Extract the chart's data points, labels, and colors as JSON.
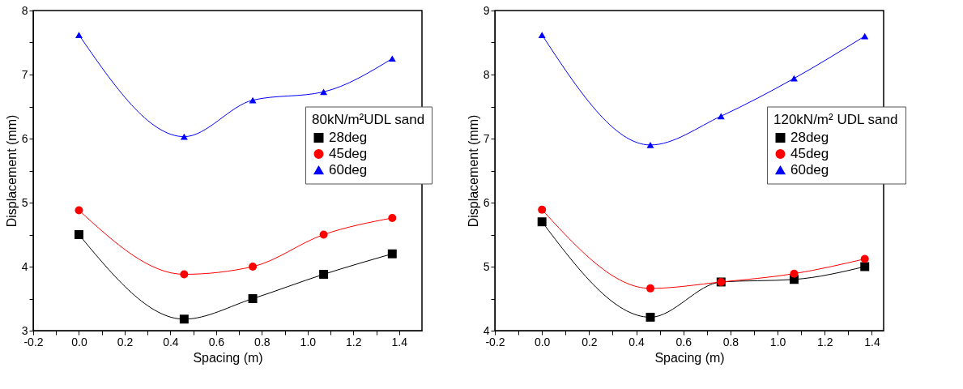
{
  "chart_data": [
    {
      "type": "line",
      "xlabel": "Spacing (m)",
      "ylabel": "Displacement (mm)",
      "legend_title": "80kN/m²UDL sand",
      "legend": "right",
      "line_style": "solid",
      "grid": false,
      "x": [
        0,
        0.46,
        0.76,
        1.07,
        1.37
      ],
      "series": [
        {
          "name": "28deg",
          "color": "#000000",
          "marker": "square",
          "values": [
            4.5,
            3.18,
            3.5,
            3.88,
            4.2
          ]
        },
        {
          "name": "45deg",
          "color": "#ff0000",
          "marker": "circle",
          "values": [
            4.88,
            3.88,
            4.0,
            4.5,
            4.76
          ]
        },
        {
          "name": "60deg",
          "color": "#0000ff",
          "marker": "triangle",
          "values": [
            7.62,
            6.03,
            6.6,
            6.73,
            7.25
          ]
        }
      ],
      "xlim": [
        -0.2,
        1.5
      ],
      "ylim": [
        3,
        8
      ],
      "xticks": [
        {
          "value": -0.2,
          "label": "-0.2"
        },
        {
          "value": -0.1,
          "label": null
        },
        {
          "value": 0,
          "label": "0.0"
        },
        {
          "value": 0.1,
          "label": null
        },
        {
          "value": 0.2,
          "label": "0.2"
        },
        {
          "value": 0.3,
          "label": null
        },
        {
          "value": 0.4,
          "label": "0.4"
        },
        {
          "value": 0.5,
          "label": null
        },
        {
          "value": 0.6,
          "label": "0.6"
        },
        {
          "value": 0.7,
          "label": null
        },
        {
          "value": 0.8,
          "label": "0.8"
        },
        {
          "value": 0.9,
          "label": null
        },
        {
          "value": 1.0,
          "label": "1.0"
        },
        {
          "value": 1.1,
          "label": null
        },
        {
          "value": 1.2,
          "label": "1.2"
        },
        {
          "value": 1.3,
          "label": null
        },
        {
          "value": 1.4,
          "label": "1.4"
        }
      ],
      "yticks": [
        3,
        {
          "value": 3.5,
          "label": null
        },
        4,
        {
          "value": 4.5,
          "label": null
        },
        5,
        {
          "value": 5.5,
          "label": null
        },
        6,
        {
          "value": 6.5,
          "label": null
        },
        7,
        {
          "value": 7.5,
          "label": null
        },
        8
      ]
    },
    {
      "type": "line",
      "xlabel": "Spacing (m)",
      "ylabel": "Displacement (mm)",
      "legend_title": "120kN/m² UDL sand",
      "legend": "right",
      "line_style": "solid",
      "grid": false,
      "x": [
        0,
        0.46,
        0.76,
        1.07,
        1.37
      ],
      "series": [
        {
          "name": "28deg",
          "color": "#000000",
          "marker": "square",
          "values": [
            5.7,
            4.21,
            4.76,
            4.8,
            5.0
          ]
        },
        {
          "name": "45deg",
          "color": "#ff0000",
          "marker": "circle",
          "values": [
            5.89,
            4.66,
            4.76,
            4.89,
            5.12
          ]
        },
        {
          "name": "60deg",
          "color": "#0000ff",
          "marker": "triangle",
          "values": [
            8.62,
            6.9,
            7.35,
            7.94,
            8.6
          ]
        }
      ],
      "xlim": [
        -0.2,
        1.45
      ],
      "ylim": [
        4,
        9
      ],
      "xticks": [
        {
          "value": -0.2,
          "label": "-0.2"
        },
        {
          "value": -0.1,
          "label": null
        },
        {
          "value": 0,
          "label": "0.0"
        },
        {
          "value": 0.1,
          "label": null
        },
        {
          "value": 0.2,
          "label": "0.2"
        },
        {
          "value": 0.3,
          "label": null
        },
        {
          "value": 0.4,
          "label": "0.4"
        },
        {
          "value": 0.5,
          "label": null
        },
        {
          "value": 0.6,
          "label": "0.6"
        },
        {
          "value": 0.7,
          "label": null
        },
        {
          "value": 0.8,
          "label": "0.8"
        },
        {
          "value": 0.9,
          "label": null
        },
        {
          "value": 1.0,
          "label": "1.0"
        },
        {
          "value": 1.1,
          "label": null
        },
        {
          "value": 1.2,
          "label": "1.2"
        },
        {
          "value": 1.3,
          "label": null
        },
        {
          "value": 1.4,
          "label": "1.4"
        }
      ],
      "yticks": [
        4,
        {
          "value": 4.5,
          "label": null
        },
        5,
        {
          "value": 5.5,
          "label": null
        },
        6,
        {
          "value": 6.5,
          "label": null
        },
        7,
        {
          "value": 7.5,
          "label": null
        },
        8,
        {
          "value": 8.5,
          "label": null
        },
        9
      ]
    }
  ]
}
